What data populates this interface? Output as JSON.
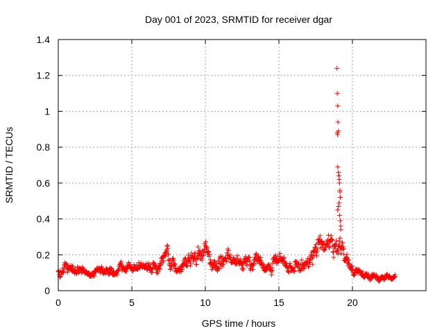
{
  "chart_data": {
    "type": "scatter",
    "title": "Day 001 of 2023, SRMTID for receiver dgar",
    "xlabel": "GPS time / hours",
    "ylabel": "SRMTID / TECUs",
    "xlim": [
      0,
      25
    ],
    "ylim": [
      0,
      1.4
    ],
    "x_ticks": [
      0,
      5,
      10,
      15,
      20
    ],
    "x_tick_labels": [
      "0",
      "5",
      "10",
      "15",
      "20"
    ],
    "y_ticks": [
      0,
      0.2,
      0.4,
      0.6,
      0.8,
      1,
      1.2,
      1.4
    ],
    "y_tick_labels": [
      "0",
      "0.2",
      "0.4",
      "0.6",
      "0.8",
      "1",
      "1.2",
      "1.4"
    ],
    "grid": true,
    "marker": "plus",
    "series_color": "#ff0000",
    "spike_points": {
      "x": [
        18.95,
        18.97,
        19.0,
        19.02,
        19.05,
        18.97,
        18.99,
        19.0,
        19.05,
        19.08,
        19.1,
        19.12,
        19.15,
        19.15,
        19.17,
        19.1,
        19.05,
        19.0,
        19.12,
        19.18,
        19.2,
        19.22
      ],
      "y": [
        1.24,
        1.1,
        1.03,
        0.94,
        0.89,
        0.88,
        0.87,
        0.69,
        0.66,
        0.64,
        0.62,
        0.6,
        0.56,
        0.55,
        0.52,
        0.49,
        0.47,
        0.45,
        0.42,
        0.39,
        0.36,
        0.34
      ]
    },
    "baseline_profile": {
      "x": [
        0,
        0.5,
        1,
        1.5,
        2,
        2.5,
        3,
        3.5,
        4,
        4.5,
        5,
        5.5,
        6,
        6.5,
        7,
        7.5,
        8,
        8.5,
        9,
        9.5,
        10,
        10.5,
        11,
        11.5,
        12,
        12.5,
        13,
        13.5,
        14,
        14.5,
        15,
        15.5,
        16,
        16.5,
        17,
        17.5,
        18,
        18.5,
        19,
        19.5,
        20,
        20.5,
        21,
        21.5,
        22,
        22.5,
        22.9
      ],
      "y": [
        0.11,
        0.13,
        0.12,
        0.11,
        0.1,
        0.1,
        0.11,
        0.11,
        0.1,
        0.11,
        0.12,
        0.12,
        0.13,
        0.14,
        0.15,
        0.17,
        0.13,
        0.14,
        0.16,
        0.2,
        0.24,
        0.18,
        0.15,
        0.16,
        0.14,
        0.15,
        0.16,
        0.17,
        0.13,
        0.14,
        0.17,
        0.14,
        0.13,
        0.16,
        0.17,
        0.23,
        0.27,
        0.25,
        0.22,
        0.18,
        0.12,
        0.09,
        0.08,
        0.08,
        0.08,
        0.08,
        0.09
      ],
      "spread": [
        0.03,
        0.03,
        0.03,
        0.03,
        0.03,
        0.03,
        0.03,
        0.03,
        0.03,
        0.03,
        0.03,
        0.03,
        0.03,
        0.04,
        0.04,
        0.05,
        0.04,
        0.04,
        0.05,
        0.06,
        0.06,
        0.05,
        0.05,
        0.05,
        0.04,
        0.04,
        0.04,
        0.04,
        0.04,
        0.04,
        0.05,
        0.04,
        0.04,
        0.05,
        0.05,
        0.06,
        0.06,
        0.06,
        0.06,
        0.05,
        0.03,
        0.02,
        0.02,
        0.02,
        0.02,
        0.02,
        0.02
      ]
    },
    "baseline_sample_step_hours": 0.025,
    "baseline_x_range": [
      0,
      22.9
    ]
  }
}
